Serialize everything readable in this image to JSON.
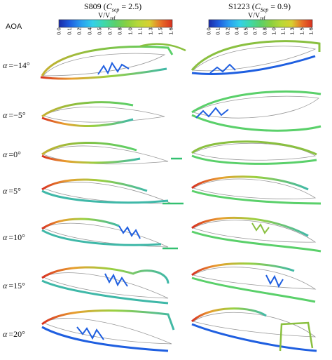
{
  "figure": {
    "aoa_header": "AOA",
    "columns": [
      {
        "airfoil": "S809",
        "cparam_symbol": "C",
        "cparam_sub": "sep",
        "cparam_value": "= 2.5",
        "colorbar_label_main": "V/V",
        "colorbar_label_sub": "ref"
      },
      {
        "airfoil": "S1223",
        "cparam_symbol": "C",
        "cparam_sub": "Sep",
        "cparam_value": "= 0.9",
        "colorbar_label_main": "V/V",
        "colorbar_label_sub": "ref"
      }
    ],
    "colorbar_ticks": [
      "0.0",
      "0.1",
      "0.2",
      "0.4",
      "0.5",
      "0.7",
      "0.8",
      "1.0",
      "1.1",
      "1.3",
      "1.5",
      "1.6"
    ],
    "colorbar_colors": [
      "#1a2aa8",
      "#1f5fe0",
      "#2aa0f0",
      "#33d0e8",
      "#3fd8a8",
      "#5ad06a",
      "#8ad040",
      "#b8d838",
      "#d8d030",
      "#e8a830",
      "#e87028",
      "#d83020"
    ],
    "rows": [
      {
        "symbol": "α",
        "value": "=−14°"
      },
      {
        "symbol": "α",
        "value": "=−5°"
      },
      {
        "symbol": "α",
        "value": "=0°"
      },
      {
        "symbol": "α",
        "value": "=5°"
      },
      {
        "symbol": "α",
        "value": "=10°"
      },
      {
        "symbol": "α",
        "value": "=15°"
      },
      {
        "symbol": "α",
        "value": "=20°"
      }
    ]
  }
}
